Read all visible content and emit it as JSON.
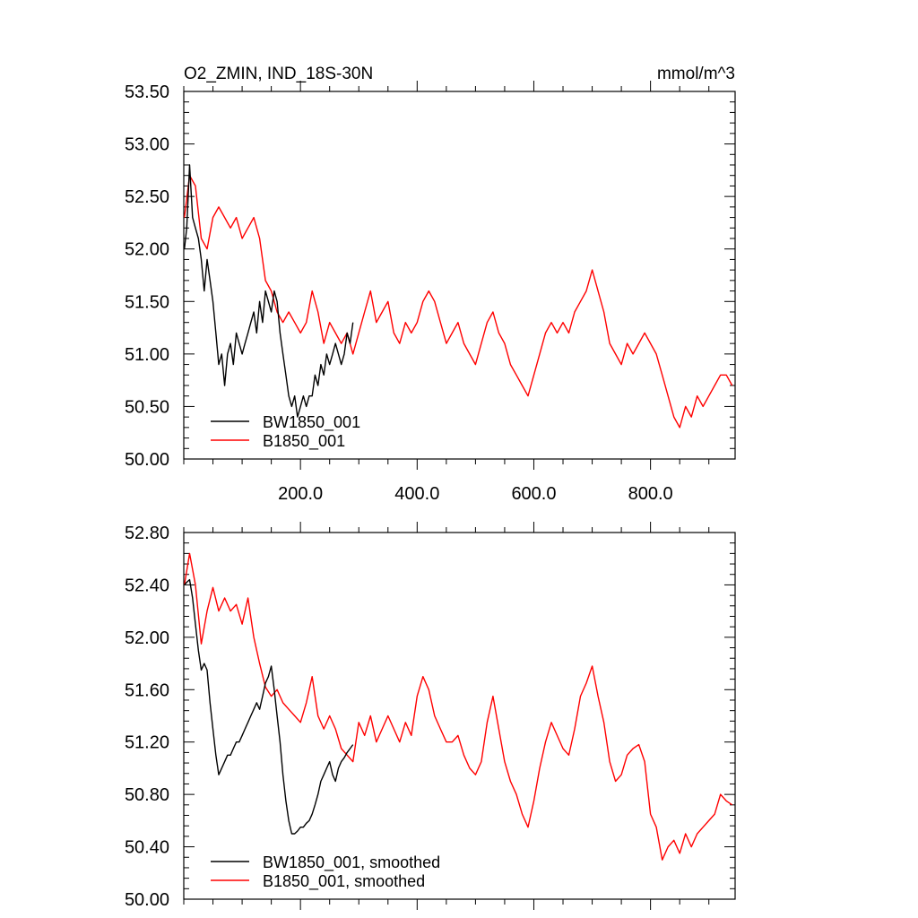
{
  "chart_data": [
    {
      "type": "line",
      "title": "O2_ZMIN, IND_18S-30N",
      "units": "mmol/m^3",
      "xlim": [
        0,
        945
      ],
      "ylim": [
        50.0,
        53.5
      ],
      "xticks": [
        200,
        400,
        600,
        800
      ],
      "xtick_labels": [
        "200.0",
        "400.0",
        "600.0",
        "800.0"
      ],
      "yticks": [
        50.0,
        50.5,
        51.0,
        51.5,
        52.0,
        52.5,
        53.0,
        53.5
      ],
      "ytick_labels": [
        "50.00",
        "50.50",
        "51.00",
        "51.50",
        "52.00",
        "52.50",
        "53.00",
        "53.50"
      ],
      "grid": false,
      "legend_position": "bottom-left",
      "series": [
        {
          "name": "BW1850_001",
          "color": "#000000",
          "x": [
            1,
            5,
            10,
            15,
            20,
            25,
            30,
            35,
            40,
            45,
            50,
            55,
            60,
            65,
            70,
            75,
            80,
            85,
            90,
            95,
            100,
            105,
            110,
            115,
            120,
            125,
            130,
            135,
            140,
            145,
            150,
            155,
            160,
            165,
            170,
            175,
            180,
            185,
            190,
            195,
            200,
            205,
            210,
            215,
            220,
            225,
            230,
            235,
            240,
            245,
            250,
            255,
            260,
            265,
            270,
            275,
            280,
            285,
            290
          ],
          "values": [
            52.0,
            52.2,
            52.8,
            52.3,
            52.2,
            52.1,
            51.9,
            51.6,
            51.9,
            51.7,
            51.5,
            51.2,
            50.9,
            51.0,
            50.7,
            51.0,
            51.1,
            50.9,
            51.2,
            51.1,
            51.0,
            51.1,
            51.2,
            51.3,
            51.4,
            51.2,
            51.5,
            51.3,
            51.6,
            51.5,
            51.4,
            51.6,
            51.5,
            51.2,
            51.0,
            50.8,
            50.6,
            50.5,
            50.6,
            50.4,
            50.5,
            50.6,
            50.5,
            50.6,
            50.6,
            50.8,
            50.7,
            50.9,
            50.8,
            51.0,
            50.9,
            51.0,
            51.1,
            51.0,
            50.9,
            51.0,
            51.2,
            51.1,
            51.3
          ]
        },
        {
          "name": "B1850_001",
          "color": "#ff0000",
          "x": [
            1,
            10,
            20,
            30,
            40,
            50,
            60,
            70,
            80,
            90,
            100,
            110,
            120,
            130,
            140,
            150,
            160,
            170,
            180,
            190,
            200,
            210,
            220,
            230,
            240,
            250,
            260,
            270,
            280,
            290,
            300,
            310,
            320,
            330,
            340,
            350,
            360,
            370,
            380,
            390,
            400,
            410,
            420,
            430,
            440,
            450,
            460,
            470,
            480,
            490,
            500,
            510,
            520,
            530,
            540,
            550,
            560,
            570,
            580,
            590,
            600,
            610,
            620,
            630,
            640,
            650,
            660,
            670,
            680,
            690,
            700,
            710,
            720,
            730,
            740,
            750,
            760,
            770,
            780,
            790,
            800,
            810,
            820,
            830,
            840,
            850,
            860,
            870,
            880,
            890,
            900,
            910,
            920,
            930,
            940
          ],
          "values": [
            52.3,
            52.7,
            52.6,
            52.1,
            52.0,
            52.3,
            52.4,
            52.3,
            52.2,
            52.3,
            52.1,
            52.2,
            52.3,
            52.1,
            51.7,
            51.6,
            51.4,
            51.3,
            51.4,
            51.3,
            51.2,
            51.3,
            51.6,
            51.4,
            51.1,
            51.3,
            51.2,
            51.1,
            51.2,
            51.0,
            51.2,
            51.4,
            51.6,
            51.3,
            51.4,
            51.5,
            51.2,
            51.1,
            51.3,
            51.2,
            51.3,
            51.5,
            51.6,
            51.5,
            51.3,
            51.1,
            51.2,
            51.3,
            51.1,
            51.0,
            50.9,
            51.1,
            51.3,
            51.4,
            51.2,
            51.1,
            50.9,
            50.8,
            50.7,
            50.6,
            50.8,
            51.0,
            51.2,
            51.3,
            51.2,
            51.3,
            51.2,
            51.4,
            51.5,
            51.6,
            51.8,
            51.6,
            51.4,
            51.1,
            51.0,
            50.9,
            51.1,
            51.0,
            51.1,
            51.2,
            51.1,
            51.0,
            50.8,
            50.6,
            50.4,
            50.3,
            50.5,
            50.4,
            50.6,
            50.5,
            50.6,
            50.7,
            50.8,
            50.8,
            50.7
          ]
        }
      ]
    },
    {
      "type": "line",
      "xlim": [
        0,
        945
      ],
      "ylim": [
        50.0,
        52.8
      ],
      "xticks": [
        200,
        400,
        600,
        800
      ],
      "yticks": [
        50.0,
        50.4,
        50.8,
        51.2,
        51.6,
        52.0,
        52.4,
        52.8
      ],
      "ytick_labels": [
        "50.00",
        "50.40",
        "50.80",
        "51.20",
        "51.60",
        "52.00",
        "52.40",
        "52.80"
      ],
      "grid": false,
      "legend_position": "bottom-left",
      "series": [
        {
          "name": "BW1850_001, smoothed",
          "color": "#000000",
          "x": [
            1,
            5,
            10,
            15,
            20,
            25,
            30,
            35,
            40,
            45,
            50,
            55,
            60,
            65,
            70,
            75,
            80,
            85,
            90,
            95,
            100,
            105,
            110,
            115,
            120,
            125,
            130,
            135,
            140,
            145,
            150,
            155,
            160,
            165,
            170,
            175,
            180,
            185,
            190,
            195,
            200,
            205,
            210,
            215,
            220,
            225,
            230,
            235,
            240,
            245,
            250,
            255,
            260,
            265,
            270,
            275,
            280,
            285,
            290
          ],
          "values": [
            52.4,
            52.42,
            52.44,
            52.3,
            52.1,
            51.9,
            51.75,
            51.8,
            51.75,
            51.5,
            51.3,
            51.1,
            50.95,
            51.0,
            51.05,
            51.1,
            51.1,
            51.15,
            51.2,
            51.2,
            51.25,
            51.3,
            51.35,
            51.4,
            51.45,
            51.5,
            51.45,
            51.55,
            51.65,
            51.7,
            51.78,
            51.6,
            51.4,
            51.2,
            50.95,
            50.75,
            50.6,
            50.5,
            50.5,
            50.52,
            50.55,
            50.55,
            50.58,
            50.6,
            50.65,
            50.72,
            50.8,
            50.9,
            50.95,
            51.0,
            51.05,
            50.95,
            50.9,
            51.0,
            51.05,
            51.08,
            51.12,
            51.15,
            51.18
          ]
        },
        {
          "name": "B1850_001, smoothed",
          "color": "#ff0000",
          "x": [
            1,
            10,
            20,
            30,
            40,
            50,
            60,
            70,
            80,
            90,
            100,
            110,
            120,
            130,
            140,
            150,
            160,
            170,
            180,
            190,
            200,
            210,
            220,
            230,
            240,
            250,
            260,
            270,
            280,
            290,
            300,
            310,
            320,
            330,
            340,
            350,
            360,
            370,
            380,
            390,
            400,
            410,
            420,
            430,
            440,
            450,
            460,
            470,
            480,
            490,
            500,
            510,
            520,
            530,
            540,
            550,
            560,
            570,
            580,
            590,
            600,
            610,
            620,
            630,
            640,
            650,
            660,
            670,
            680,
            690,
            700,
            710,
            720,
            730,
            740,
            750,
            760,
            770,
            780,
            790,
            800,
            810,
            820,
            830,
            840,
            850,
            860,
            870,
            880,
            890,
            900,
            910,
            920,
            930,
            940
          ],
          "values": [
            52.4,
            52.64,
            52.4,
            51.95,
            52.2,
            52.38,
            52.2,
            52.3,
            52.2,
            52.25,
            52.1,
            52.3,
            52.0,
            51.8,
            51.62,
            51.55,
            51.6,
            51.5,
            51.45,
            51.4,
            51.35,
            51.5,
            51.7,
            51.4,
            51.3,
            51.4,
            51.3,
            51.15,
            51.1,
            51.05,
            51.35,
            51.25,
            51.4,
            51.2,
            51.3,
            51.4,
            51.3,
            51.2,
            51.35,
            51.25,
            51.55,
            51.7,
            51.6,
            51.4,
            51.3,
            51.2,
            51.2,
            51.25,
            51.1,
            51.0,
            50.95,
            51.05,
            51.35,
            51.55,
            51.3,
            51.05,
            50.9,
            50.8,
            50.65,
            50.55,
            50.75,
            51.0,
            51.2,
            51.35,
            51.25,
            51.15,
            51.1,
            51.3,
            51.55,
            51.65,
            51.78,
            51.55,
            51.35,
            51.05,
            50.9,
            50.95,
            51.1,
            51.15,
            51.18,
            51.05,
            50.65,
            50.55,
            50.3,
            50.4,
            50.45,
            50.35,
            50.5,
            50.4,
            50.5,
            50.55,
            50.6,
            50.65,
            50.8,
            50.75,
            50.72
          ]
        }
      ]
    }
  ]
}
